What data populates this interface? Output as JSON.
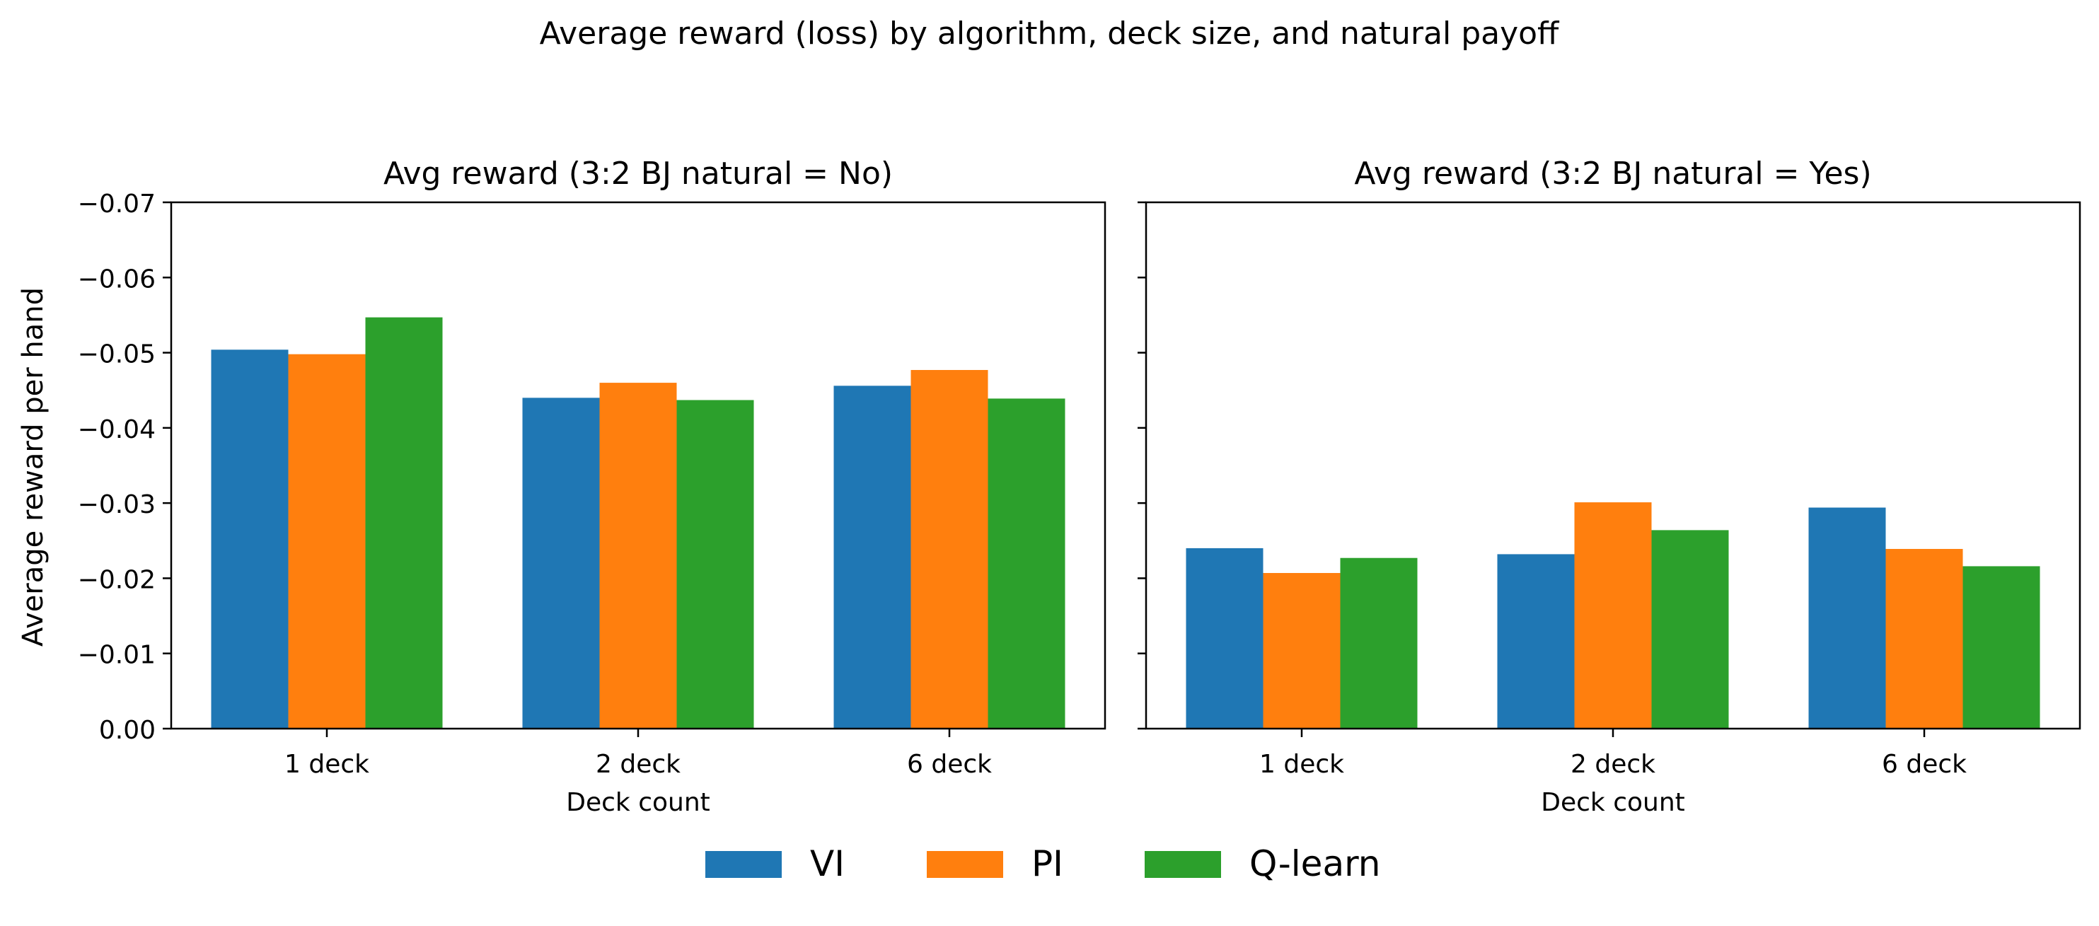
{
  "figure": {
    "suptitle": "Average reward (loss) by algorithm, deck size, and natural payoff",
    "ylabel": "Average reward per hand"
  },
  "legend": {
    "placement": "bottom-center",
    "entries": [
      {
        "label": "VI",
        "color": "#1f77b4"
      },
      {
        "label": "PI",
        "color": "#ff7f0e"
      },
      {
        "label": "Q-learn",
        "color": "#2ca02c"
      }
    ]
  },
  "chart_data": [
    {
      "type": "bar",
      "title": "Avg reward (3:2 BJ natural = No)",
      "xlabel": "Deck count",
      "ylabel": "Average reward per hand",
      "categories": [
        "1 deck",
        "2 deck",
        "6 deck"
      ],
      "ylim": [
        0,
        -0.07
      ],
      "yticks": [
        0,
        -0.01,
        -0.02,
        -0.03,
        -0.04,
        -0.05,
        -0.06,
        -0.07
      ],
      "ytick_labels": [
        "0.00",
        "−0.01",
        "−0.02",
        "−0.03",
        "−0.04",
        "−0.05",
        "−0.06",
        "−0.07"
      ],
      "grid": false,
      "series": [
        {
          "name": "VI",
          "color": "#1f77b4",
          "values": [
            -0.0504,
            -0.044,
            -0.0456
          ]
        },
        {
          "name": "PI",
          "color": "#ff7f0e",
          "values": [
            -0.0498,
            -0.046,
            -0.0477
          ]
        },
        {
          "name": "Q-learn",
          "color": "#2ca02c",
          "values": [
            -0.0547,
            -0.0437,
            -0.0439
          ]
        }
      ]
    },
    {
      "type": "bar",
      "title": "Avg reward (3:2 BJ natural = Yes)",
      "xlabel": "Deck count",
      "categories": [
        "1 deck",
        "2 deck",
        "6 deck"
      ],
      "ylim": [
        0,
        -0.07
      ],
      "yticks": [
        0,
        -0.01,
        -0.02,
        -0.03,
        -0.04,
        -0.05,
        -0.06,
        -0.07
      ],
      "grid": false,
      "series": [
        {
          "name": "VI",
          "color": "#1f77b4",
          "values": [
            -0.024,
            -0.0232,
            -0.0294
          ]
        },
        {
          "name": "PI",
          "color": "#ff7f0e",
          "values": [
            -0.0207,
            -0.0301,
            -0.0239
          ]
        },
        {
          "name": "Q-learn",
          "color": "#2ca02c",
          "values": [
            -0.0227,
            -0.0264,
            -0.0216
          ]
        }
      ]
    }
  ]
}
